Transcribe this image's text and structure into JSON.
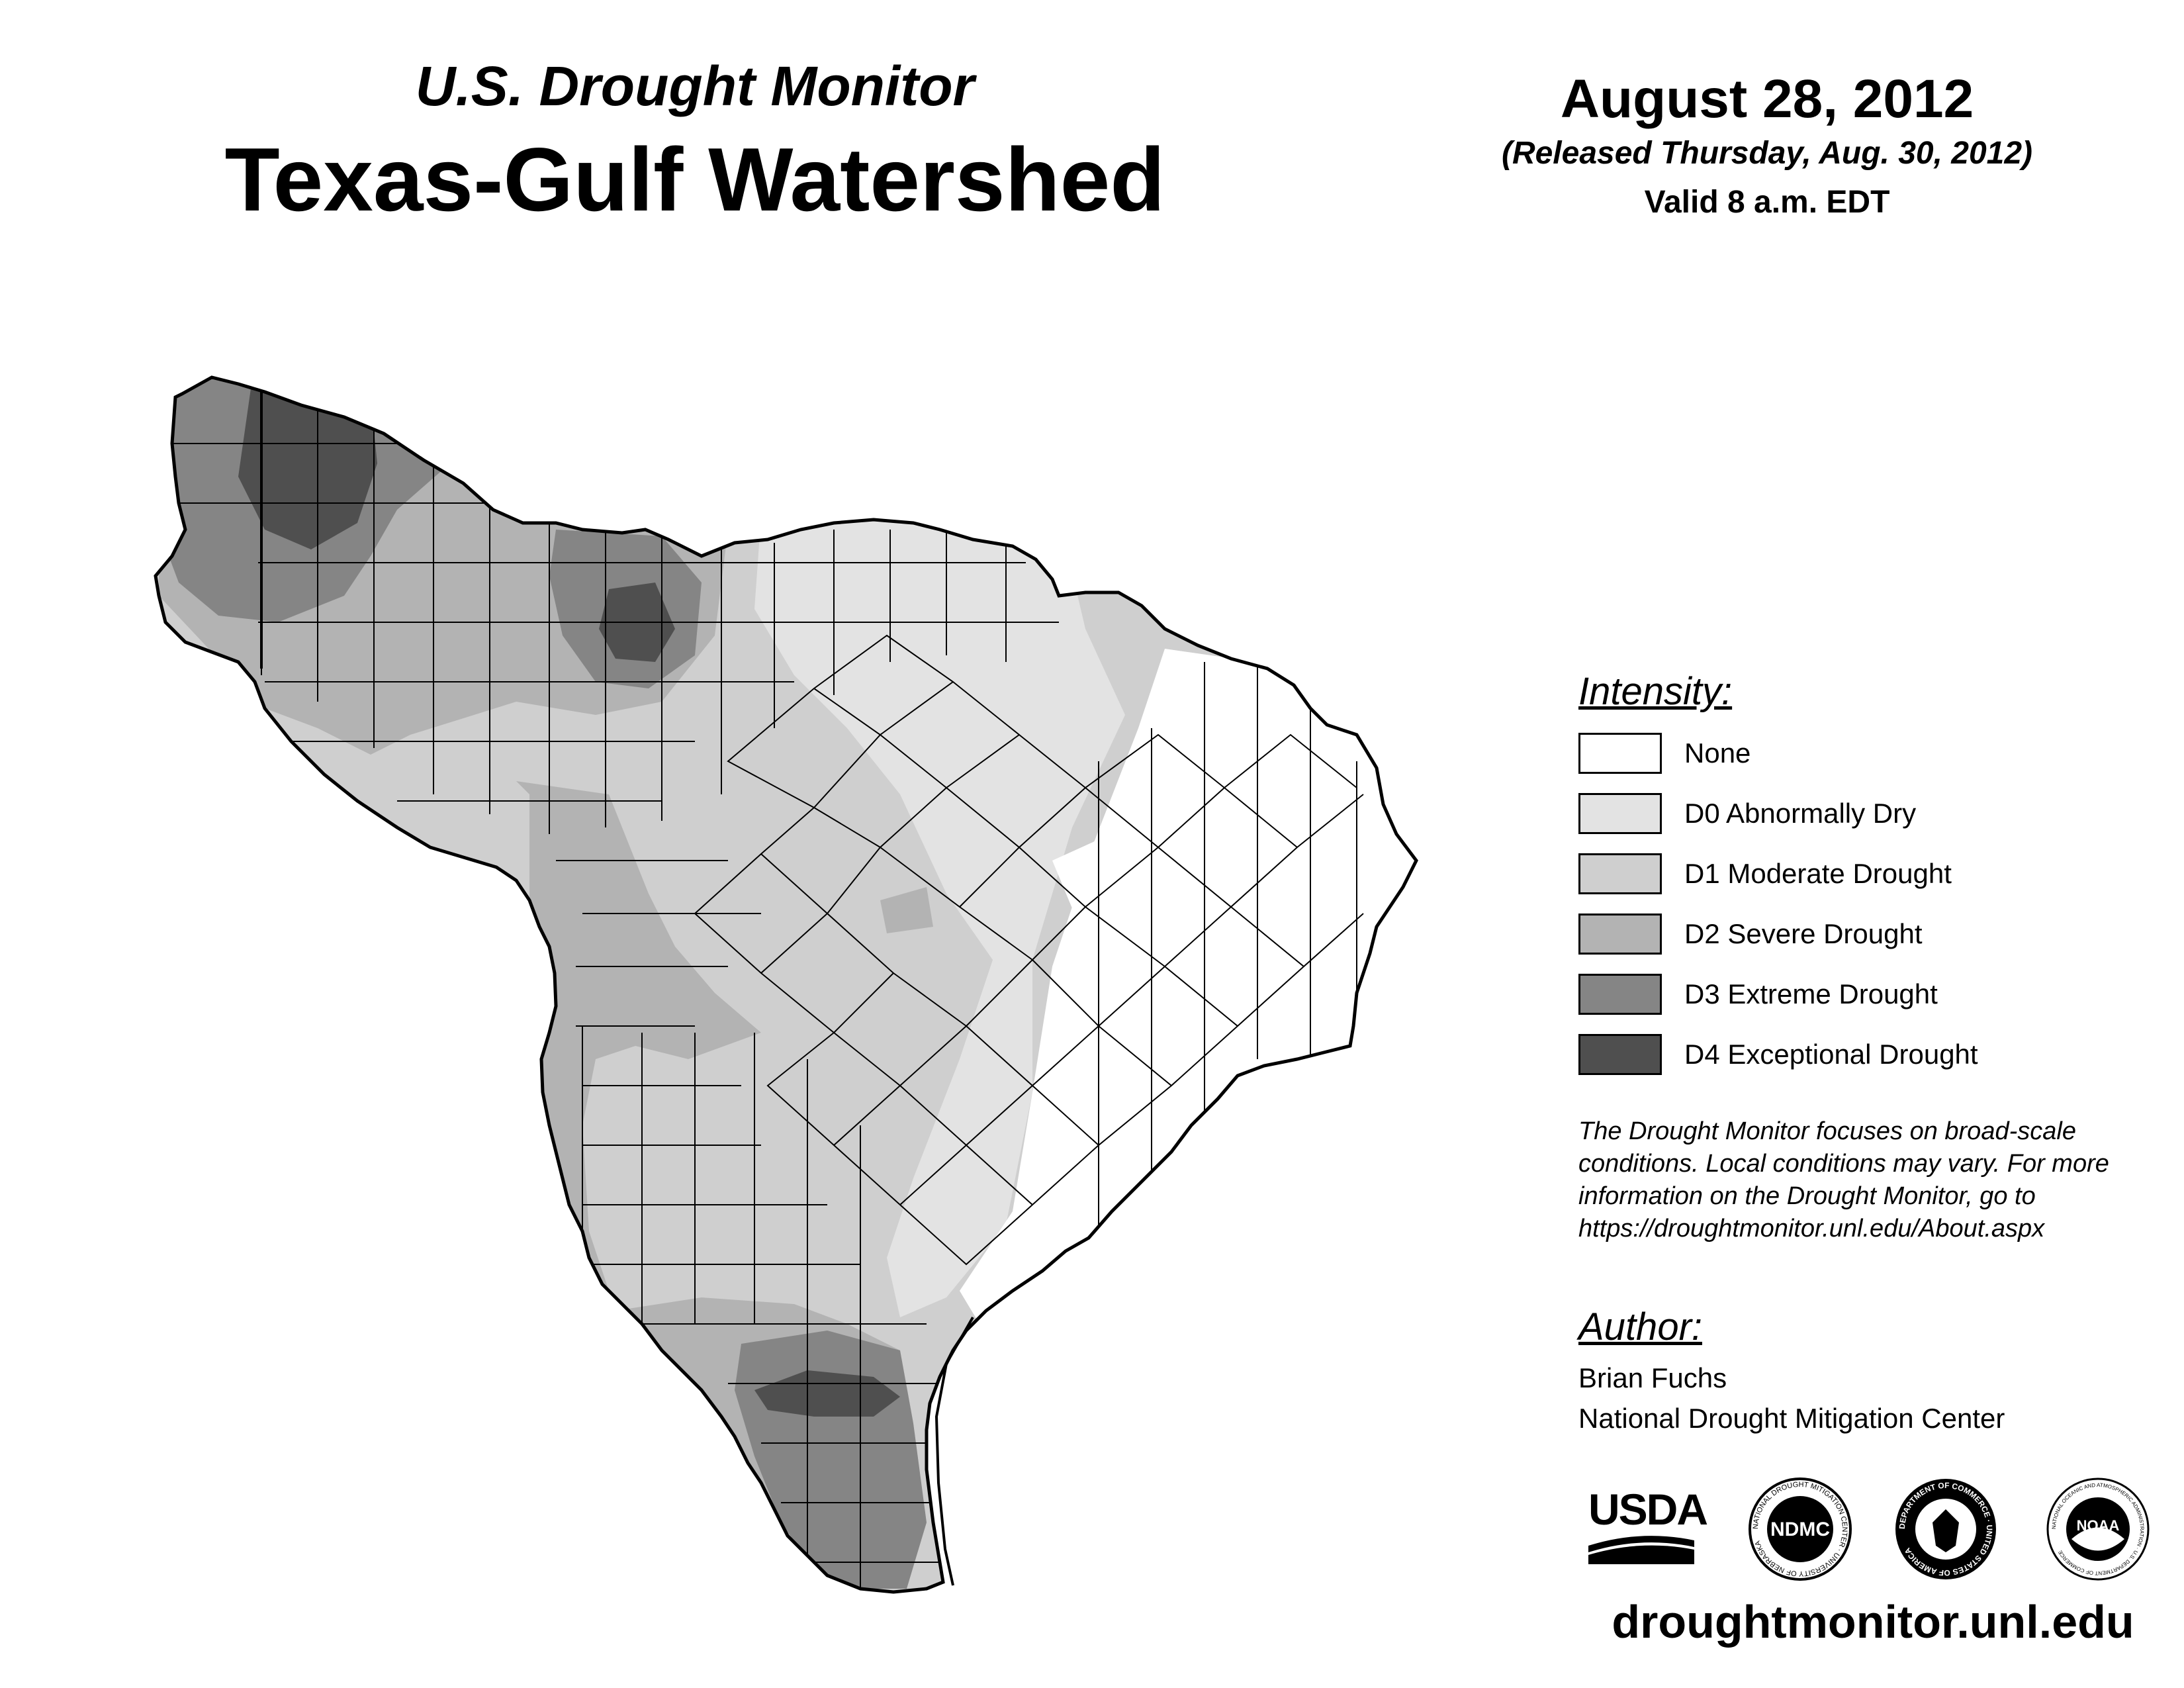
{
  "header": {
    "subtitle": "U.S. Drought Monitor",
    "title": "Texas-Gulf Watershed"
  },
  "date_info": {
    "date": "August 28, 2012",
    "released": "(Released Thursday, Aug. 30, 2012)",
    "valid": "Valid 8 a.m. EDT"
  },
  "legend": {
    "heading": "Intensity:",
    "items": [
      {
        "label": "None",
        "color": "#ffffff"
      },
      {
        "label": "D0 Abnormally Dry",
        "color": "#e3e3e3"
      },
      {
        "label": "D1 Moderate Drought",
        "color": "#cfcfcf"
      },
      {
        "label": "D2 Severe Drought",
        "color": "#b3b3b3"
      },
      {
        "label": "D3 Extreme Drought",
        "color": "#858585"
      },
      {
        "label": "D4 Exceptional Drought",
        "color": "#4f4f4f"
      }
    ]
  },
  "note": {
    "lines": [
      "The Drought Monitor focuses on broad-scale",
      "conditions. Local conditions may vary. For more",
      "information on the Drought Monitor, go to",
      "https://droughtmonitor.unl.edu/About.aspx"
    ]
  },
  "author": {
    "heading": "Author:",
    "name": "Brian Fuchs",
    "org": "National Drought Mitigation Center"
  },
  "logos": {
    "usda": "USDA",
    "ndmc": "NDMC",
    "ndmc_ring": "NATIONAL DROUGHT MITIGATION CENTER · UNIVERSITY OF NEBRASKA",
    "doc_ring": "DEPARTMENT OF COMMERCE · UNITED STATES OF AMERICA",
    "noaa": "NOAA",
    "noaa_ring": "NATIONAL OCEANIC AND ATMOSPHERIC ADMINISTRATION · U.S. DEPARTMENT OF COMMERCE"
  },
  "website": "droughtmonitor.unl.edu"
}
